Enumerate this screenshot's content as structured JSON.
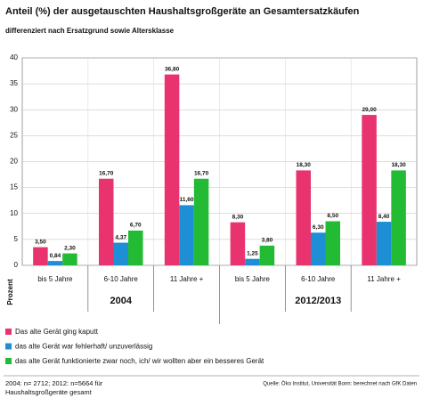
{
  "chart_data": {
    "type": "bar",
    "title": "Anteil (%) der ausgetauschten Haushaltsgroßgeräte an Gesamtersatzkäufen",
    "subtitle": "differenziert nach Ersatzgrund sowie Altersklasse",
    "y_label": "Prozent",
    "categories": [
      "bis 5 Jahre",
      "6-10 Jahre",
      "11 Jahre +",
      "bis 5 Jahre",
      "6-10 Jahre",
      "11 Jahre +"
    ],
    "groups": [
      "2004",
      "2012/2013"
    ],
    "series": [
      {
        "name": "Das alte Gerät ging kaputt",
        "color": "#e8336e",
        "values": [
          3.5,
          16.7,
          36.8,
          8.3,
          18.3,
          29.0
        ],
        "value_labels": [
          "3,50",
          "16,70",
          "36,80",
          "8,30",
          "18,30",
          "29,00"
        ]
      },
      {
        "name": "das alte Gerät war fehlerhaft/ unzuverlässig",
        "color": "#1e8fd5",
        "values": [
          0.84,
          4.37,
          11.6,
          1.25,
          6.3,
          8.4
        ],
        "value_labels": [
          "0,84",
          "4,37",
          "11,60",
          "1,25",
          "6,30",
          "8,40"
        ]
      },
      {
        "name": "das alte Gerät funktionierte zwar noch, ich/ wir wollten aber ein besseres Gerät",
        "color": "#22bb33",
        "values": [
          2.3,
          6.7,
          16.7,
          3.8,
          8.5,
          18.3
        ],
        "value_labels": [
          "2,30",
          "6,70",
          "16,70",
          "3,80",
          "8,50",
          "18,30"
        ]
      }
    ],
    "ylim": [
      0,
      40
    ],
    "yticks": [
      0,
      5,
      10,
      15,
      20,
      25,
      30,
      35,
      40
    ],
    "grid": true,
    "note": [
      "2004: n= 2712; 2012: n=5664 für",
      "Haushaltsgroßgeräte gesamt"
    ],
    "source": "Quelle: Öko Institut, Universität Bonn: berechnet nach GfK Daten"
  }
}
